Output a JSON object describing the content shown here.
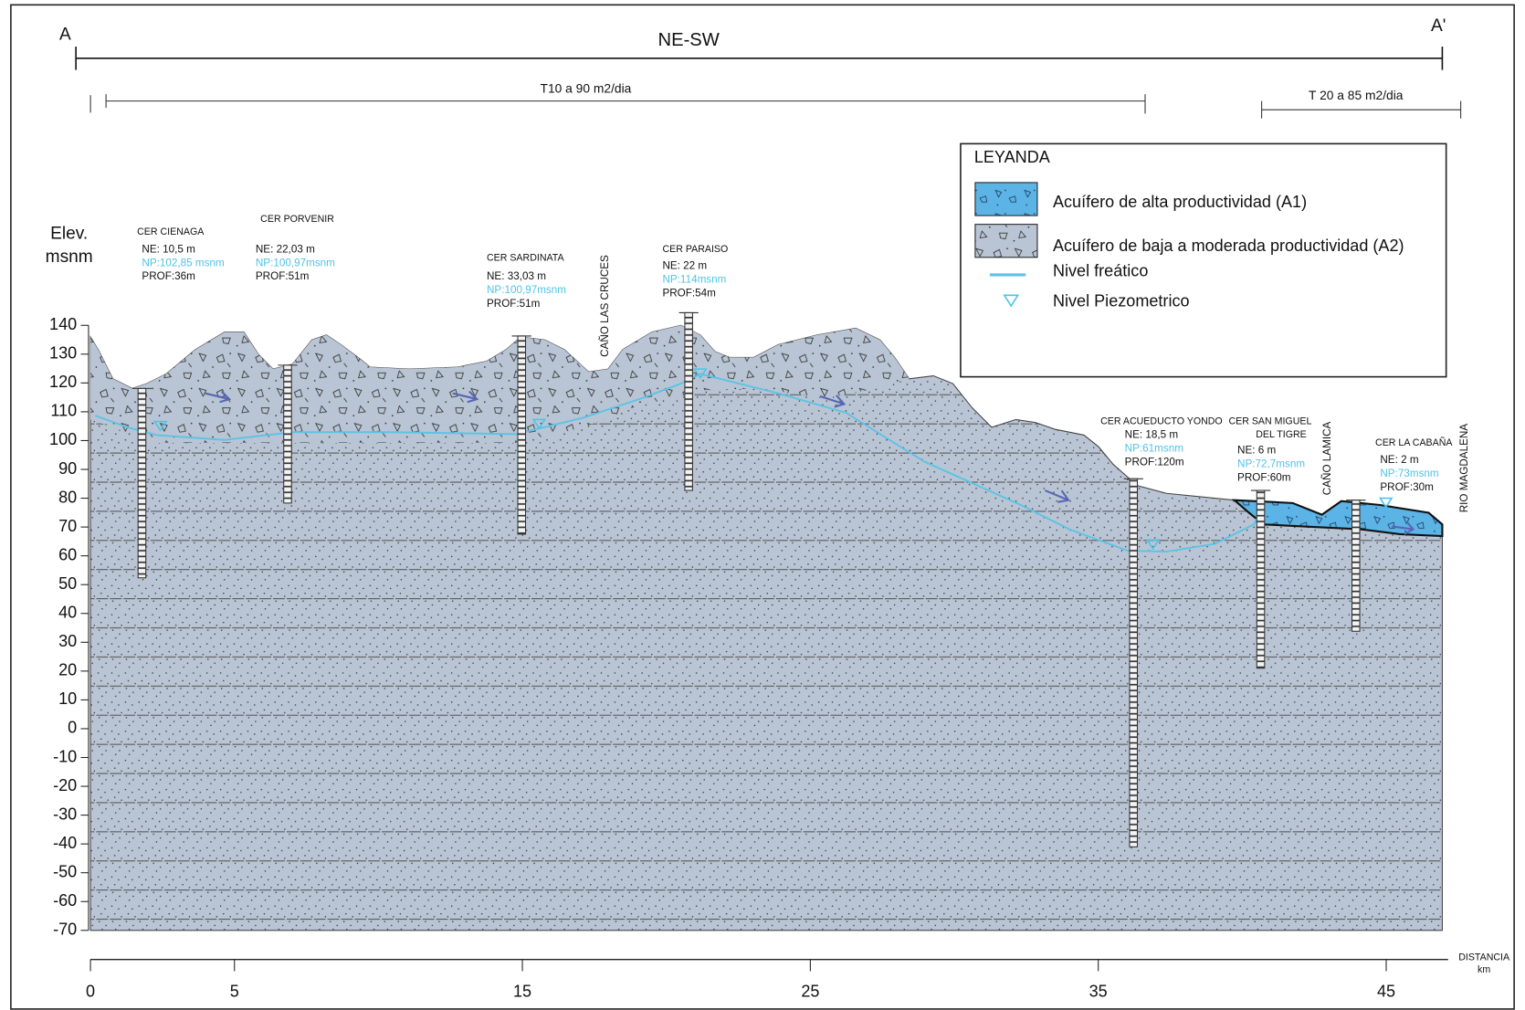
{
  "header": {
    "start": "A",
    "end": "A'",
    "direction": "NE-SW"
  },
  "transmissivity": [
    "T10 a 90 m2/dia",
    "T 20 a 85 m2/dia"
  ],
  "legend": {
    "title": "LEYANDA",
    "items": [
      "Acuífero de alta productividad (A1)",
      "Acuífero de baja a moderada productividad (A2)",
      "Nivel freático",
      "Nivel Piezometrico"
    ]
  },
  "axis": {
    "y_label": [
      "Elev.",
      "msnm"
    ],
    "yticks": [
      140,
      130,
      120,
      110,
      100,
      90,
      80,
      70,
      60,
      50,
      40,
      30,
      20,
      10,
      0,
      -10,
      -20,
      -30,
      -40,
      -50,
      -60,
      -70
    ],
    "x_label": [
      "DISTANCIA",
      "km"
    ],
    "xticks": [
      0,
      5,
      15,
      25,
      35,
      45
    ]
  },
  "wells": [
    {
      "name": [
        "CER CIENAGA"
      ],
      "ne": "NE: 10,5 m",
      "np": "NP:102,85 msnm",
      "prof": "PROF:36m"
    },
    {
      "name": [
        "CER PORVENIR"
      ],
      "ne": "NE: 22,03 m",
      "np": "NP:100,97msnm",
      "prof": "PROF:51m"
    },
    {
      "name": [
        "CER SARDINATA"
      ],
      "ne": "NE: 33,03 m",
      "np": "NP:100,97msnm",
      "prof": "PROF:51m"
    },
    {
      "name": [
        "CER PARAISO"
      ],
      "ne": "NE: 22 m",
      "np": "NP:114msnm",
      "prof": "PROF:54m"
    },
    {
      "name": [
        "CER ACUEDUCTO YONDO"
      ],
      "ne": "NE: 18,5 m",
      "np": "NP:61msnm",
      "prof": "PROF:120m"
    },
    {
      "name": [
        "CER SAN MIGUEL",
        "DEL TIGRE"
      ],
      "ne": "NE: 6 m",
      "np": "NP:72,7msnm",
      "prof": "PROF:60m"
    },
    {
      "name": [
        "CER LA CABAÑA"
      ],
      "ne": "NE: 2 m",
      "np": "NP:73msnm",
      "prof": "PROF:30m"
    }
  ],
  "features": [
    "CAÑO LAS CRUCES",
    "CAÑO LAMICA",
    "RIO MAGDALENA"
  ]
}
